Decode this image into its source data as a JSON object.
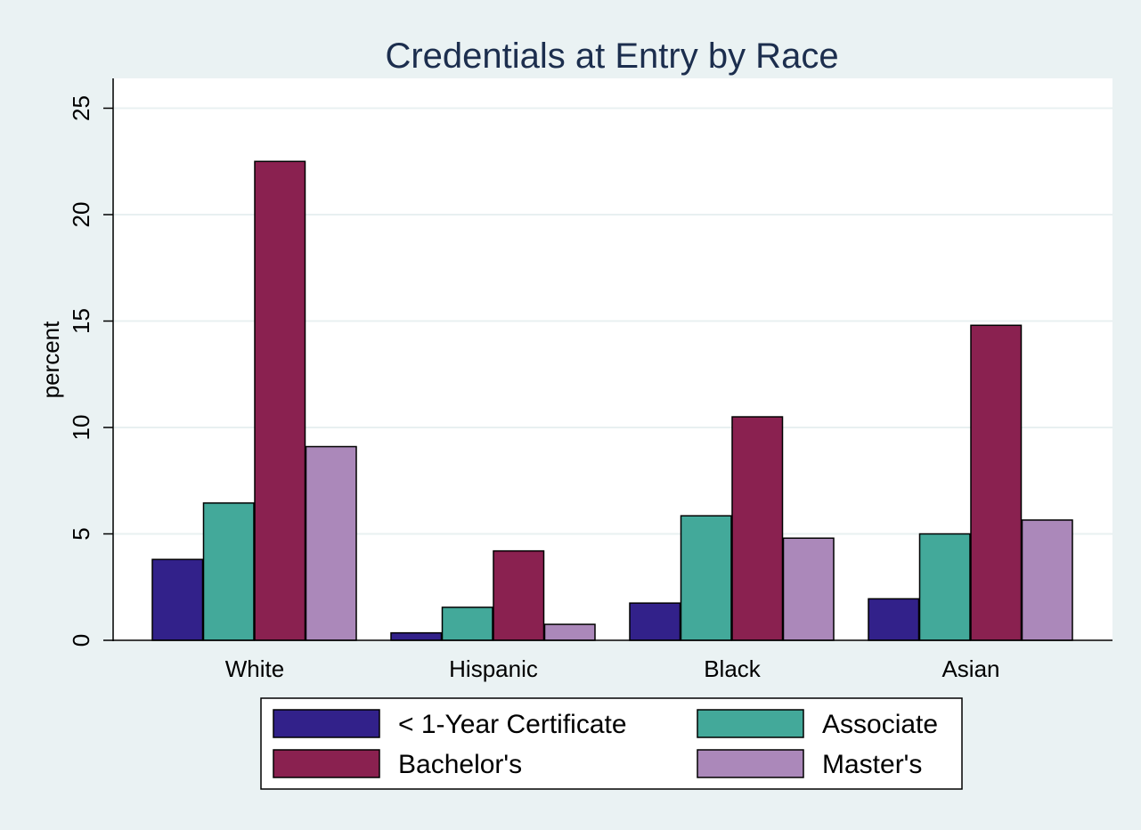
{
  "chart_data": {
    "type": "bar",
    "title": "Credentials at Entry by Race",
    "ylabel": "percent",
    "xlabel": "",
    "ylim": [
      0,
      25
    ],
    "yticks": [
      "0",
      "5",
      "10",
      "15",
      "20",
      "25"
    ],
    "grid": true,
    "legend_position": "bottom",
    "categories": [
      "White",
      "Hispanic",
      "Black",
      "Asian"
    ],
    "series": [
      {
        "name": "< 1-Year Certificate",
        "color": "#32218a",
        "values": [
          3.8,
          0.35,
          1.75,
          1.95
        ]
      },
      {
        "name": "Associate",
        "color": "#43a99a",
        "values": [
          6.45,
          1.55,
          5.85,
          5.0
        ]
      },
      {
        "name": "Bachelor's",
        "color": "#8a2150",
        "values": [
          22.5,
          4.2,
          10.5,
          14.8
        ]
      },
      {
        "name": "Master's",
        "color": "#ab88ba",
        "values": [
          9.1,
          0.75,
          4.8,
          5.65
        ]
      }
    ]
  }
}
